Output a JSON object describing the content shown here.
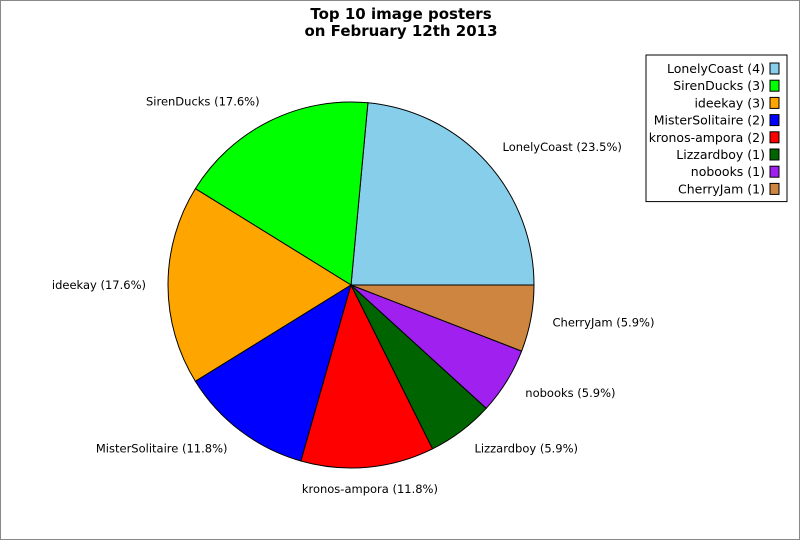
{
  "chart_data": {
    "type": "pie",
    "title_lines": [
      "Top 10 image posters",
      "on February 12th 2013"
    ],
    "slices": [
      {
        "name": "LonelyCoast",
        "count": 4,
        "percent": 23.5,
        "color": "#87ceeb"
      },
      {
        "name": "SirenDucks",
        "count": 3,
        "percent": 17.6,
        "color": "#00ff00"
      },
      {
        "name": "ideekay",
        "count": 3,
        "percent": 17.6,
        "color": "#ffa500"
      },
      {
        "name": "MisterSolitaire",
        "count": 2,
        "percent": 11.8,
        "color": "#0000ff"
      },
      {
        "name": "kronos-ampora",
        "count": 2,
        "percent": 11.8,
        "color": "#ff0000"
      },
      {
        "name": "Lizzardboy",
        "count": 1,
        "percent": 5.9,
        "color": "#006400"
      },
      {
        "name": "nobooks",
        "count": 1,
        "percent": 5.9,
        "color": "#a020f0"
      },
      {
        "name": "CherryJam",
        "count": 1,
        "percent": 5.9,
        "color": "#cd853f"
      }
    ],
    "legend_placement": "top-right"
  }
}
